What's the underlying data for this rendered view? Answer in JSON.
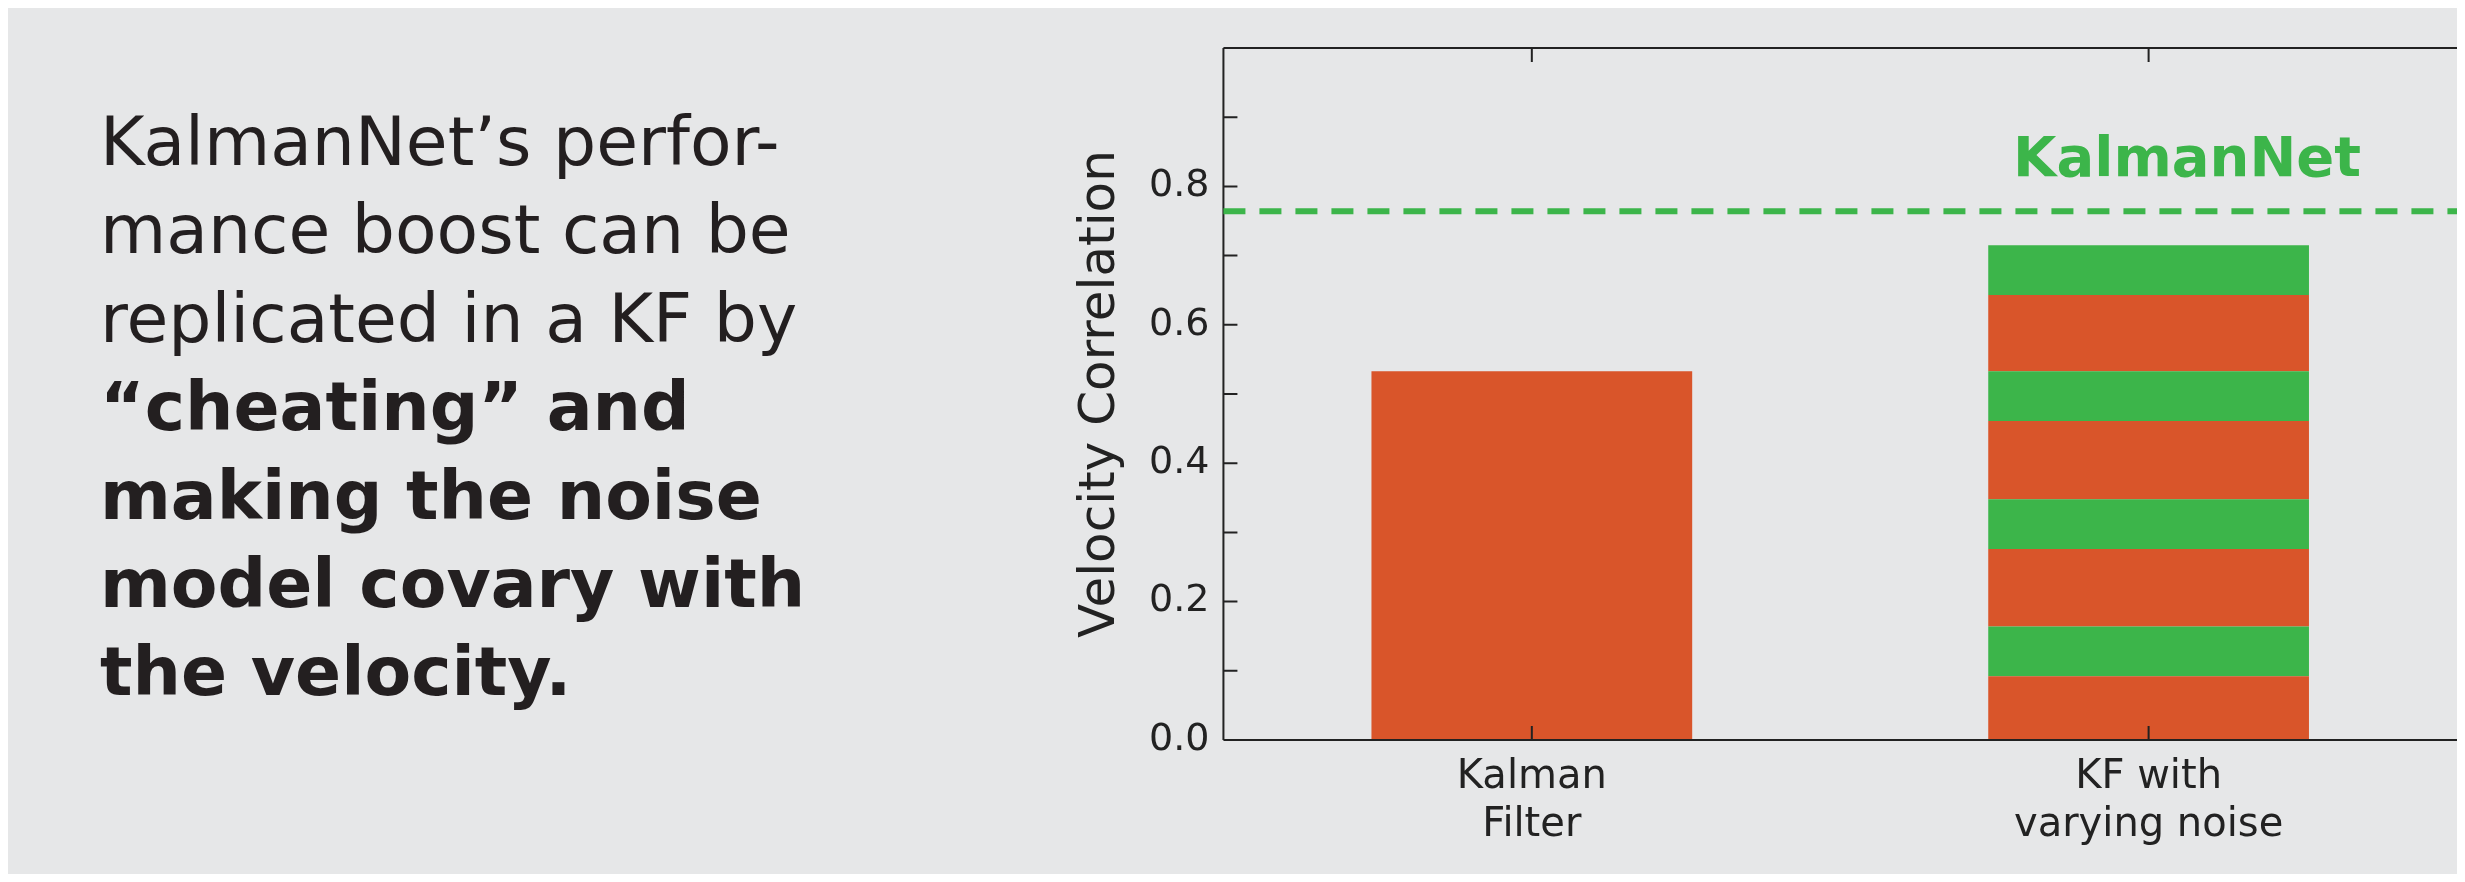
{
  "chart_data": {
    "type": "bar",
    "stacked": true,
    "ylabel": "Velocity Correlation",
    "categories": [
      "Kalman\nFilter",
      "KF with\nvarying noise"
    ],
    "series": [
      {
        "color": "#d9552a",
        "values": [
          0.533,
          0.092
        ]
      },
      {
        "color": "#3cb54a",
        "values": [
          null,
          0.072
        ]
      },
      {
        "color": "#d9552a",
        "values": [
          null,
          0.112
        ]
      },
      {
        "color": "#3cb54a",
        "values": [
          null,
          0.072
        ]
      },
      {
        "color": "#d9552a",
        "values": [
          null,
          0.113
        ]
      },
      {
        "color": "#3cb54a",
        "values": [
          null,
          0.072
        ]
      },
      {
        "color": "#d9552a",
        "values": [
          null,
          0.11
        ]
      },
      {
        "color": "#3cb54a",
        "values": [
          null,
          0.072
        ]
      }
    ],
    "ylim": [
      0,
      1
    ],
    "yticks": [
      {
        "value": 0,
        "label": "0.0"
      },
      {
        "value": 0.1,
        "label": null
      },
      {
        "value": 0.2,
        "label": "0.2"
      },
      {
        "value": 0.3,
        "label": null
      },
      {
        "value": 0.4,
        "label": "0.4"
      },
      {
        "value": 0.5,
        "label": null
      },
      {
        "value": 0.6,
        "label": "0.6"
      },
      {
        "value": 0.7,
        "label": null
      },
      {
        "value": 0.8,
        "label": "0.8"
      },
      {
        "value": 0.9,
        "label": null
      },
      {
        "value": 1,
        "label": null
      }
    ],
    "ref_lines": [
      {
        "axis": "y",
        "value": 0.764,
        "label": "KalmanNet",
        "color": "#3cb54a",
        "line_style": "dashed"
      }
    ],
    "annotations": [
      "KalmanNet’s perfor-\nmance boost can be\nreplicated in a KF by",
      "“cheating” and\nmaking the noise\nmodel covary with\nthe velocity."
    ],
    "grid": false,
    "legend": false
  }
}
